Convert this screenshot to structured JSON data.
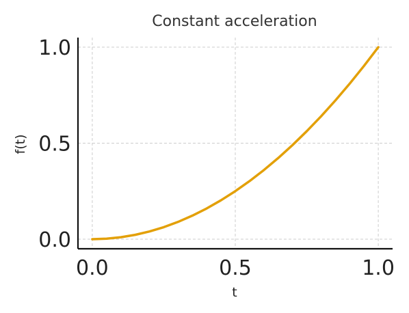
{
  "chart_data": {
    "type": "line",
    "title": "Constant acceleration",
    "xlabel": "t",
    "ylabel": "f(t)",
    "xlim": [
      -0.05,
      1.05
    ],
    "ylim": [
      -0.05,
      1.05
    ],
    "xticks": [
      0.0,
      0.5,
      1.0
    ],
    "yticks": [
      0.0,
      0.5,
      1.0
    ],
    "xtick_labels": [
      "0.0",
      "0.5",
      "1.0"
    ],
    "ytick_labels": [
      "0.0",
      "0.5",
      "1.0"
    ],
    "grid": true,
    "series": [
      {
        "color": "#E3A008",
        "x": [
          0.0,
          0.05,
          0.1,
          0.15,
          0.2,
          0.25,
          0.3,
          0.35,
          0.4,
          0.45,
          0.5,
          0.55,
          0.6,
          0.65,
          0.7,
          0.75,
          0.8,
          0.85,
          0.9,
          0.95,
          1.0
        ],
        "y": [
          0.0,
          0.0025,
          0.01,
          0.0225,
          0.04,
          0.0625,
          0.09,
          0.1225,
          0.16,
          0.2025,
          0.25,
          0.3025,
          0.36,
          0.4225,
          0.49,
          0.5625,
          0.64,
          0.7225,
          0.81,
          0.9025,
          1.0
        ]
      }
    ]
  }
}
